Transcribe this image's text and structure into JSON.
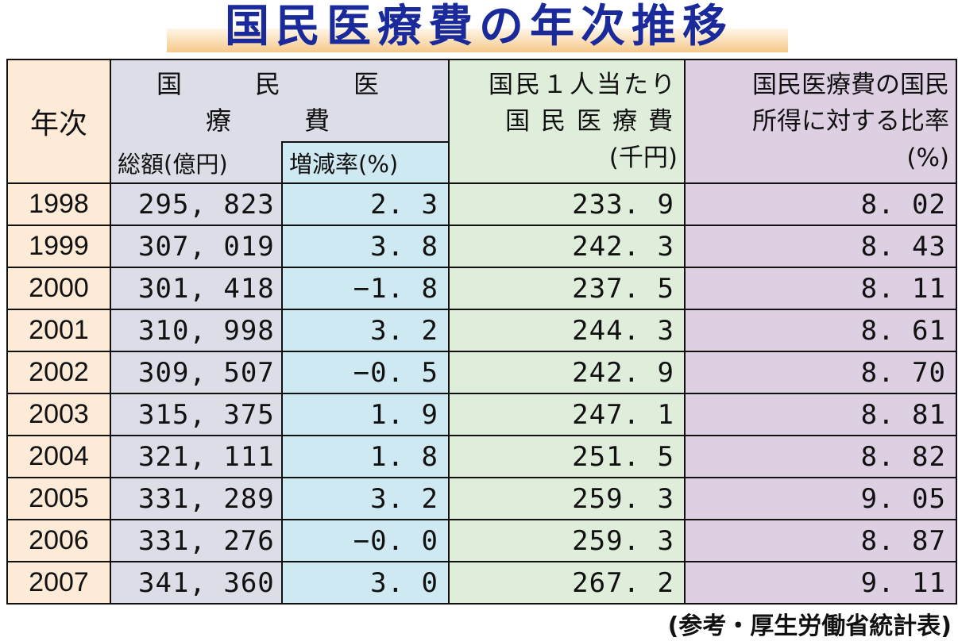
{
  "title": "国民医療費の年次推移",
  "header": {
    "year": "年次",
    "national_medical_expenses": "国　民　医　療　費",
    "total": "総額(億円)",
    "change_rate": "増減率(%)",
    "per_capita_line1": "国民１人当たり",
    "per_capita_line2": "国民医療費",
    "per_capita_unit": "(千円)",
    "ratio_line1": "国民医療費の国民",
    "ratio_line2": "所得に対する比率",
    "ratio_unit": "(%)"
  },
  "rows": [
    {
      "year": "1998",
      "total": "295, 823",
      "rate": "2. 3",
      "per_capita": "233. 9",
      "ratio": "8. 02"
    },
    {
      "year": "1999",
      "total": "307, 019",
      "rate": "3. 8",
      "per_capita": "242. 3",
      "ratio": "8. 43"
    },
    {
      "year": "2000",
      "total": "301, 418",
      "rate": "−1. 8",
      "per_capita": "237. 5",
      "ratio": "8. 11"
    },
    {
      "year": "2001",
      "total": "310, 998",
      "rate": "3. 2",
      "per_capita": "244. 3",
      "ratio": "8. 61"
    },
    {
      "year": "2002",
      "total": "309, 507",
      "rate": "−0. 5",
      "per_capita": "242. 9",
      "ratio": "8. 70"
    },
    {
      "year": "2003",
      "total": "315, 375",
      "rate": "1. 9",
      "per_capita": "247. 1",
      "ratio": "8. 81"
    },
    {
      "year": "2004",
      "total": "321, 111",
      "rate": "1. 8",
      "per_capita": "251. 5",
      "ratio": "8. 82"
    },
    {
      "year": "2005",
      "total": "331, 289",
      "rate": "3. 2",
      "per_capita": "259. 3",
      "ratio": "9. 05"
    },
    {
      "year": "2006",
      "total": "331, 276",
      "rate": "−0. 0",
      "per_capita": "259. 3",
      "ratio": "8. 87"
    },
    {
      "year": "2007",
      "total": "341, 360",
      "rate": "3. 0",
      "per_capita": "267. 2",
      "ratio": "9. 11"
    }
  ],
  "source": "(参考・厚生労働省統計表)",
  "colors": {
    "title": "#1a2a9a",
    "year_col": "#fdebd8",
    "total_col": "#dcdde6",
    "rate_col": "#cfe9f2",
    "per_capita_col": "#dfeeda",
    "ratio_col": "#ddd0e3"
  }
}
